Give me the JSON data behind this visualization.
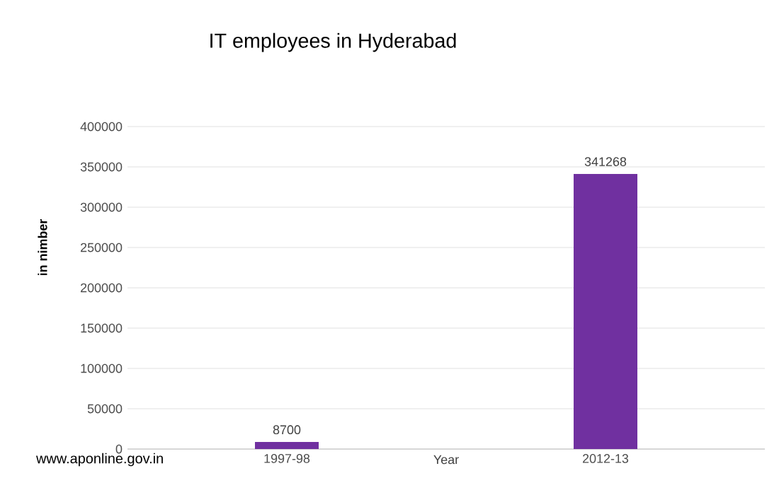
{
  "chart_data": {
    "type": "bar",
    "title": "IT employees in Hyderabad",
    "xlabel": "Year",
    "ylabel": "in nimber",
    "annotations": [
      "www.aponline.gov.in"
    ],
    "categories": [
      "1997-98",
      "2012-13"
    ],
    "values": [
      8700,
      341268
    ],
    "color": "#7030a0",
    "ylim": [
      0,
      400000
    ],
    "yticks": [
      0,
      50000,
      100000,
      150000,
      200000,
      250000,
      300000,
      350000,
      400000
    ],
    "grid": "y",
    "data_labels": true
  }
}
